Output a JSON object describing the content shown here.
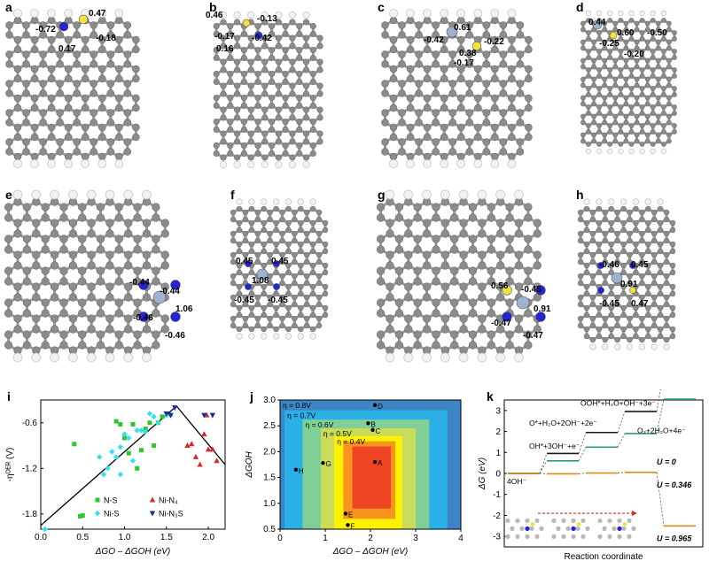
{
  "panels": {
    "a": {
      "label": "a",
      "charges": [
        "0.47",
        "-0.72",
        "-0.18",
        "0.17"
      ]
    },
    "b": {
      "label": "b",
      "charges": [
        "0.46",
        "-0.13",
        "-0.17",
        "-0.42",
        "0.16"
      ]
    },
    "c": {
      "label": "c",
      "charges": [
        "0.61",
        "-0.42",
        "-0.22",
        "0.38",
        "-0.17"
      ]
    },
    "d": {
      "label": "d",
      "charges": [
        "0.44",
        "0.60",
        "-0.50",
        "-0.25",
        "-0.20"
      ]
    },
    "e": {
      "label": "e",
      "charges": [
        "-0.44",
        "-0.44",
        "1.06",
        "-0.46",
        "-0.46"
      ]
    },
    "f": {
      "label": "f",
      "charges": [
        "0.45",
        "0.45",
        "1.08",
        "-0.45",
        "-0.45"
      ]
    },
    "g": {
      "label": "g",
      "charges": [
        "0.56",
        "-0.45",
        "0.91",
        "-0.47",
        "-0.47"
      ]
    },
    "h": {
      "label": "h",
      "charges": [
        "-0.46",
        "0.45",
        "0.91",
        "-0.45",
        "0.47"
      ]
    },
    "i": {
      "label": "i"
    },
    "j": {
      "label": "j"
    },
    "k": {
      "label": "k"
    }
  },
  "colors": {
    "carbon": "#8c8c8c",
    "hydrogen": "#f2f2f2",
    "nitrogen": "#2323d8",
    "sulfur": "#f2e23a",
    "nickel": "#9db3cf"
  },
  "chart_data": [
    {
      "type": "scatter",
      "panel": "i",
      "xlabel": "ΔGO – ΔGOH (eV)",
      "ylabel": "-η^OER (V)",
      "xlim": [
        0,
        2.2
      ],
      "ylim": [
        -2.0,
        -0.3
      ],
      "xticks": [
        "0.0",
        "0.5",
        "1.0",
        "1.5",
        "2.0"
      ],
      "yticks": [
        "-0.6",
        "-1.2",
        "-1.8"
      ],
      "legend": [
        "N-S",
        "Ni-S",
        "Ni-N₄",
        "Ni-N₃S"
      ],
      "series": [
        {
          "name": "N-S",
          "marker": "square",
          "color": "#2ec72e",
          "points": [
            [
              0.4,
              -0.88
            ],
            [
              0.5,
              -1.82
            ],
            [
              0.47,
              -1.83
            ],
            [
              0.9,
              -0.58
            ],
            [
              0.95,
              -0.62
            ],
            [
              1.0,
              -0.8
            ],
            [
              1.05,
              -1.0
            ],
            [
              1.1,
              -0.62
            ],
            [
              1.15,
              -1.2
            ],
            [
              1.2,
              -0.96
            ],
            [
              1.25,
              -0.68
            ],
            [
              1.3,
              -0.6
            ],
            [
              1.4,
              -0.6
            ],
            [
              1.35,
              -0.9
            ],
            [
              1.45,
              -0.52
            ]
          ]
        },
        {
          "name": "Ni-S",
          "marker": "diamond",
          "color": "#33e2f0",
          "points": [
            [
              0.05,
              -2.0
            ],
            [
              0.7,
              -1.05
            ],
            [
              0.75,
              -1.28
            ],
            [
              0.8,
              -1.2
            ],
            [
              0.85,
              -0.98
            ],
            [
              0.9,
              -1.05
            ],
            [
              0.95,
              -0.92
            ],
            [
              0.95,
              -1.28
            ],
            [
              1.0,
              -0.75
            ],
            [
              1.05,
              -0.8
            ],
            [
              1.1,
              -1.1
            ],
            [
              1.15,
              -0.7
            ],
            [
              1.2,
              -0.7
            ],
            [
              1.25,
              -0.72
            ],
            [
              1.3,
              -0.48
            ],
            [
              1.35,
              -0.52
            ],
            [
              1.4,
              -0.6
            ],
            [
              1.5,
              -0.5
            ],
            [
              1.55,
              -0.5
            ]
          ]
        },
        {
          "name": "Ni-N₄",
          "marker": "triangle-up",
          "color": "#d42a2a",
          "points": [
            [
              1.75,
              -0.9
            ],
            [
              1.8,
              -0.88
            ],
            [
              1.85,
              -1.05
            ],
            [
              1.9,
              -1.15
            ],
            [
              1.95,
              -0.75
            ],
            [
              2.0,
              -0.95
            ],
            [
              2.05,
              -0.95
            ],
            [
              2.1,
              -1.1
            ],
            [
              1.98,
              -0.5
            ]
          ]
        },
        {
          "name": "Ni-N₃S",
          "marker": "triangle-down",
          "color": "#1a2c9a",
          "points": [
            [
              1.5,
              -0.48
            ],
            [
              1.55,
              -0.5
            ],
            [
              1.6,
              -0.4
            ],
            [
              1.95,
              -0.5
            ],
            [
              2.05,
              -0.5
            ]
          ]
        }
      ],
      "volcano_line": [
        [
          0.0,
          -1.95
        ],
        [
          1.62,
          -0.38
        ],
        [
          2.2,
          -1.15
        ]
      ]
    },
    {
      "type": "heatmap",
      "panel": "j",
      "xlabel": "ΔGO – ΔGOH (eV)",
      "ylabel": "ΔGOH",
      "xlim": [
        0,
        4
      ],
      "ylim": [
        0.5,
        3.0
      ],
      "xticks": [
        "0",
        "1",
        "2",
        "3",
        "4"
      ],
      "yticks": [
        "0.5",
        "1.0",
        "1.5",
        "2.0",
        "2.5",
        "3.0"
      ],
      "contours": [
        {
          "label": "η = 0.8V",
          "color": "#3d86c6",
          "box": [
            0.0,
            0.5,
            4.0,
            3.0
          ]
        },
        {
          "label": "η = 0.7V",
          "color": "#2ab0e6",
          "box": [
            0.1,
            0.5,
            3.7,
            2.8
          ]
        },
        {
          "label": "η = 0.6V",
          "color": "#7fcf96",
          "box": [
            0.5,
            0.5,
            3.3,
            2.62
          ]
        },
        {
          "label": "η = 0.5V",
          "color": "#c8dc5a",
          "box": [
            0.9,
            0.5,
            3.0,
            2.45
          ]
        },
        {
          "label": "η = 0.4V",
          "color": "#fff200",
          "box": [
            1.2,
            0.5,
            2.7,
            2.3
          ]
        },
        {
          "label": "",
          "color": "#f7941d",
          "box": [
            1.4,
            0.7,
            2.55,
            2.2
          ]
        },
        {
          "label": "",
          "color": "#ef4423",
          "box": [
            1.6,
            0.9,
            2.45,
            2.1
          ]
        }
      ],
      "points": [
        {
          "label": "A",
          "x": 2.1,
          "y": 1.8
        },
        {
          "label": "B",
          "x": 1.95,
          "y": 2.55
        },
        {
          "label": "C",
          "x": 2.05,
          "y": 2.42
        },
        {
          "label": "D",
          "x": 2.1,
          "y": 2.9
        },
        {
          "label": "E",
          "x": 1.45,
          "y": 0.8
        },
        {
          "label": "F",
          "x": 1.5,
          "y": 0.58
        },
        {
          "label": "G",
          "x": 0.95,
          "y": 1.78
        },
        {
          "label": "H",
          "x": 0.35,
          "y": 1.65
        }
      ]
    },
    {
      "type": "line",
      "panel": "k",
      "xlabel": "Reaction coordinate",
      "ylabel": "ΔG (eV)",
      "ylim": [
        -3.5,
        3.5
      ],
      "yticks": [
        "3",
        "2",
        "1",
        "0",
        "-1",
        "-2",
        "-3"
      ],
      "step_labels": [
        "4OH⁻",
        "OH*+3OH⁻+e⁻",
        "O*+H₂O+2OH⁻+2e⁻",
        "OOH*+H₂O+OH⁻+3e⁻",
        "O₂+2H₂O+4e⁻"
      ],
      "series": [
        {
          "name": "U = 0",
          "color": "#1a1a1a",
          "values": [
            0,
            0.95,
            1.95,
            2.95,
            4.92
          ]
        },
        {
          "name": "U = 0.346",
          "color": "#2a9a7a",
          "values": [
            0,
            0.6,
            1.25,
            1.9,
            3.54
          ]
        },
        {
          "name": "U = 0.965",
          "color": "#e08a1a",
          "values": [
            0,
            -0.02,
            0.02,
            0.05,
            -2.5
          ]
        }
      ],
      "annotations": [
        "U = 0",
        "U = 0.346",
        "U = 0.965"
      ]
    }
  ]
}
